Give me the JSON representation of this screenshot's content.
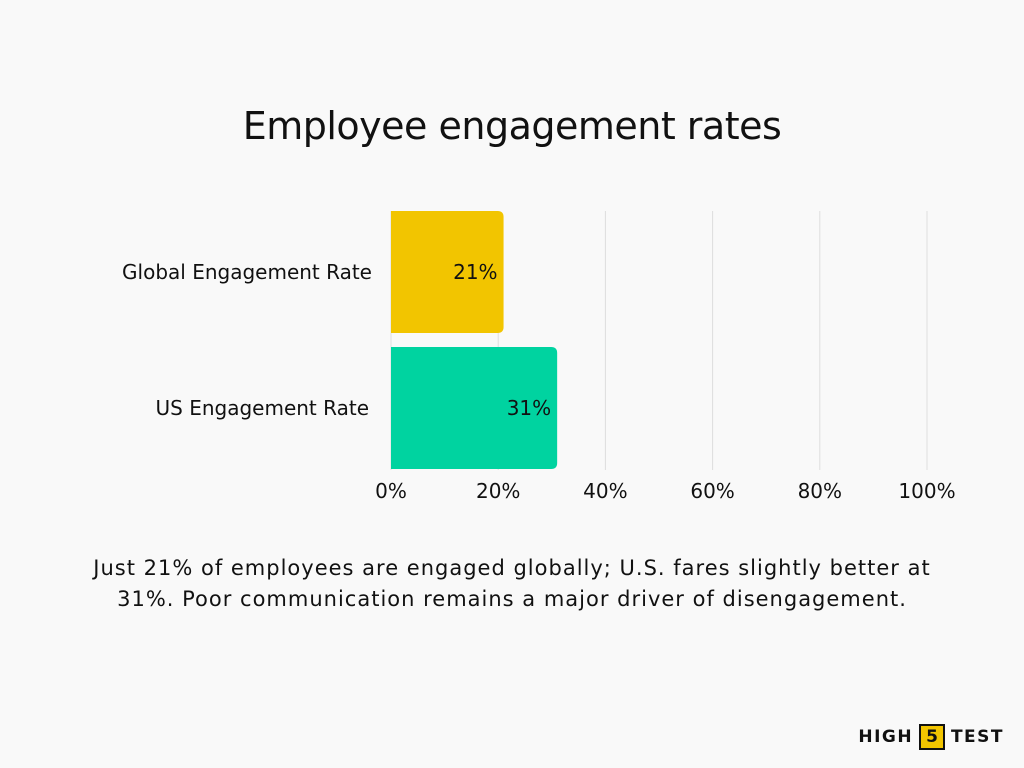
{
  "chart_data": {
    "type": "bar",
    "orientation": "horizontal",
    "title": "Employee engagement rates",
    "categories": [
      "Global Engagement Rate",
      "US Engagement Rate"
    ],
    "values": [
      21,
      31
    ],
    "value_labels": [
      "21%",
      "31%"
    ],
    "colors": [
      "#f2c500",
      "#00d3a0"
    ],
    "xlim": [
      0,
      100
    ],
    "xticks": [
      0,
      20,
      40,
      60,
      80,
      100
    ],
    "xtick_labels": [
      "0%",
      "20%",
      "40%",
      "60%",
      "80%",
      "100%"
    ],
    "grid": true,
    "xlabel": "",
    "ylabel": ""
  },
  "caption": "Just 21% of employees are engaged globally; U.S. fares slightly better at 31%. Poor communication remains a major driver of disengagement.",
  "logo": {
    "left": "HIGH",
    "number": "5",
    "right": "TEST"
  }
}
